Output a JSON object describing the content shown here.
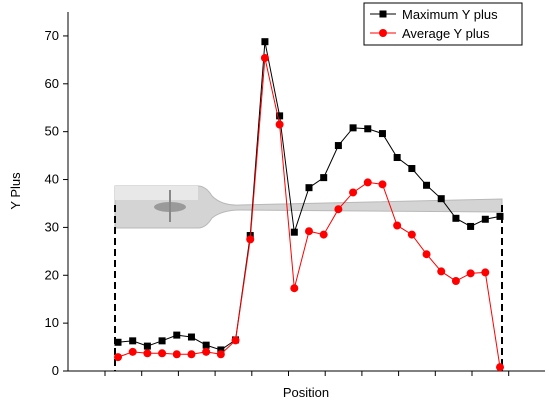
{
  "chart_data": {
    "type": "line",
    "y_label": "Y Plus",
    "x_label": "Position",
    "series": [
      {
        "name": "Maximum Y plus",
        "color": "#000000",
        "marker": "square",
        "values": [
          6.0,
          6.3,
          5.2,
          6.3,
          7.5,
          7.1,
          5.4,
          4.4,
          6.5,
          28.3,
          68.8,
          53.3,
          29.0,
          38.3,
          40.4,
          47.1,
          50.8,
          50.6,
          49.6,
          44.6,
          42.3,
          38.8,
          36.0,
          31.9,
          30.2,
          31.7,
          32.3
        ]
      },
      {
        "name": "Average Y plus",
        "color": "#ff0000",
        "marker": "circle",
        "values": [
          2.9,
          4.0,
          3.7,
          3.7,
          3.5,
          3.5,
          4.0,
          3.5,
          6.4,
          27.5,
          65.4,
          51.5,
          17.3,
          29.2,
          28.5,
          33.8,
          37.3,
          39.4,
          39.0,
          30.4,
          28.5,
          24.4,
          20.8,
          18.8,
          20.4,
          20.6,
          0.8
        ]
      }
    ],
    "ylim": [
      0,
      75
    ],
    "yticks": [
      0,
      10,
      20,
      30,
      40,
      50,
      60,
      70
    ],
    "legend": "top-right"
  }
}
